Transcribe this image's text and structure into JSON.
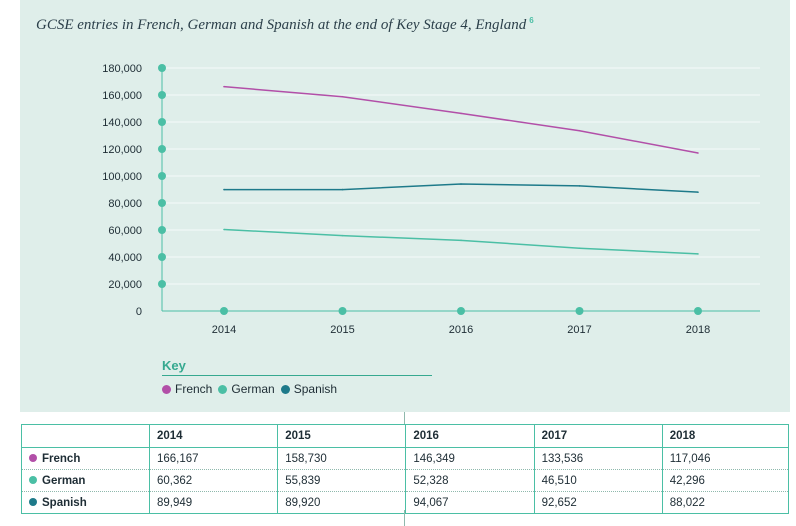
{
  "chart_title": "GCSE entries in French, German and Spanish at the end of Key Stage 4, England",
  "footnote": "6",
  "key_title": "Key",
  "colors": {
    "French": "#b24fa8",
    "German": "#4bbfa5",
    "Spanish": "#1e7a8a",
    "axis_dots": "#4bbfa5"
  },
  "chart_data": {
    "type": "line",
    "x": [
      "2014",
      "2015",
      "2016",
      "2017",
      "2018"
    ],
    "y_ticks": [
      "180,000",
      "160,000",
      "140,000",
      "120,000",
      "100,000",
      "80,000",
      "60,000",
      "40,000",
      "20,000",
      "0"
    ],
    "ylim": [
      0,
      180000
    ],
    "grid": true,
    "series": [
      {
        "name": "French",
        "values": [
          166167,
          158730,
          146349,
          133536,
          117046
        ]
      },
      {
        "name": "German",
        "values": [
          60362,
          55839,
          52328,
          46510,
          42296
        ]
      },
      {
        "name": "Spanish",
        "values": [
          89949,
          89920,
          94067,
          92652,
          88022
        ]
      }
    ]
  },
  "table": {
    "headers": [
      "",
      "2014",
      "2015",
      "2016",
      "2017",
      "2018"
    ],
    "rows": [
      {
        "label": "French",
        "cells": [
          "166,167",
          "158,730",
          "146,349",
          "133,536",
          "117,046"
        ]
      },
      {
        "label": "German",
        "cells": [
          "60,362",
          "55,839",
          "52,328",
          "46,510",
          "42,296"
        ]
      },
      {
        "label": "Spanish",
        "cells": [
          "89,949",
          "89,920",
          "94,067",
          "92,652",
          "88,022"
        ]
      }
    ]
  }
}
